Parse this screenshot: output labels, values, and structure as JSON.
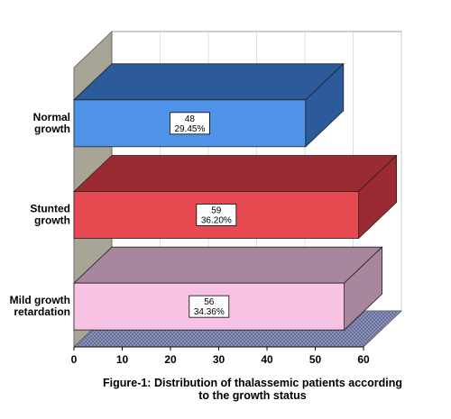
{
  "chart_data": {
    "type": "bar",
    "orientation": "horizontal",
    "three_d": true,
    "categories": [
      [
        "Normal",
        "growth"
      ],
      [
        "Stunted",
        "growth"
      ],
      [
        "Mild growth",
        "retardation"
      ]
    ],
    "values": [
      48,
      59,
      56
    ],
    "percents": [
      "29.45%",
      "36.20%",
      "34.36%"
    ],
    "colors": [
      "#4f93e8",
      "#e84a52",
      "#f7c2e3"
    ],
    "side_colors": [
      "#2c5b9c",
      "#9a2b33",
      "#a7869e"
    ],
    "xlim": [
      0,
      60
    ],
    "xticks": [
      0,
      10,
      20,
      30,
      40,
      50,
      60
    ],
    "grid": true
  },
  "caption": {
    "line1": "Figure-1: Distribution of thalassemic patients according",
    "line2": "to the growth status"
  }
}
